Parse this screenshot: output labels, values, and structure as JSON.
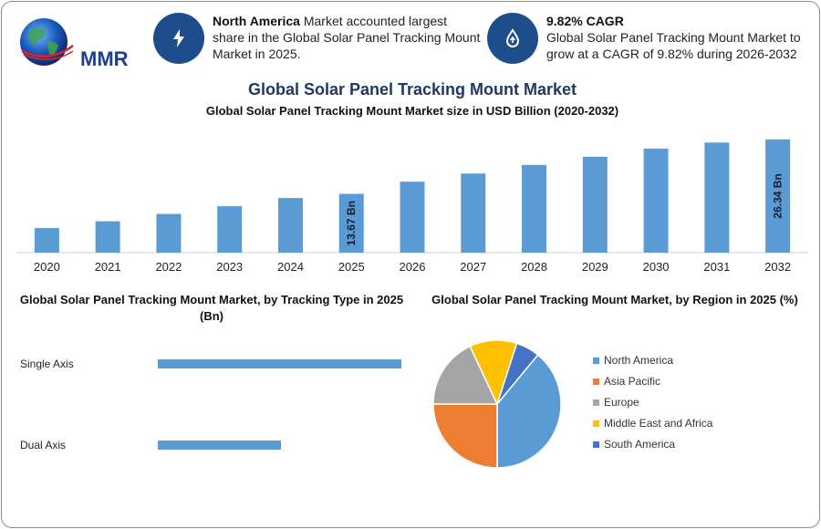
{
  "header": {
    "logo_text": "MMR",
    "stat1": {
      "bold": "North America",
      "text": " Market accounted largest share in the Global Solar Panel Tracking Mount Market in 2025.",
      "icon": "lightning-icon"
    },
    "stat2": {
      "bold": "9.82% CAGR",
      "text": "Global Solar Panel Tracking Mount Market to grow at a CAGR of 9.82% during 2026-2032",
      "icon": "growth-drop-icon"
    }
  },
  "title": "Global Solar Panel Tracking Mount Market",
  "colors": {
    "bar": "#5b9bd5",
    "accent": "#1e4d8c",
    "title": "#1f3864"
  },
  "chart_data": [
    {
      "type": "bar",
      "title": "Global Solar Panel Tracking Mount Market size in USD Billion (2020-2032)",
      "categories": [
        "2020",
        "2021",
        "2022",
        "2023",
        "2024",
        "2025",
        "2026",
        "2027",
        "2028",
        "2029",
        "2030",
        "2031",
        "2032"
      ],
      "values": [
        5.7,
        7.3,
        9.0,
        10.8,
        12.7,
        13.67,
        16.5,
        18.4,
        20.4,
        22.3,
        24.2,
        25.6,
        26.34
      ],
      "data_labels": [
        {
          "index": 5,
          "text": "13.67 Bn"
        },
        {
          "index": 12,
          "text": "26.34 Bn"
        }
      ],
      "ylim": [
        0,
        28
      ],
      "grid": false
    },
    {
      "type": "bar",
      "orientation": "horizontal",
      "title": "Global Solar Panel Tracking Mount Market, by Tracking Type in 2025 (Bn)",
      "categories": [
        "Single Axis",
        "Dual Axis"
      ],
      "values": [
        8.9,
        4.5
      ],
      "xlim": [
        0,
        9
      ]
    },
    {
      "type": "pie",
      "title": "Global Solar Panel Tracking Mount Market, by Region in 2025 (%)",
      "legend_position": "right",
      "slices": [
        {
          "label": "North America",
          "value": 39,
          "color": "#5b9bd5"
        },
        {
          "label": "Asia Pacific",
          "value": 25,
          "color": "#ed7d31"
        },
        {
          "label": "Europe",
          "value": 18,
          "color": "#a5a5a5"
        },
        {
          "label": "Middle East and Africa",
          "value": 12,
          "color": "#ffc000"
        },
        {
          "label": "South America",
          "value": 6,
          "color": "#4472c4"
        }
      ]
    }
  ]
}
